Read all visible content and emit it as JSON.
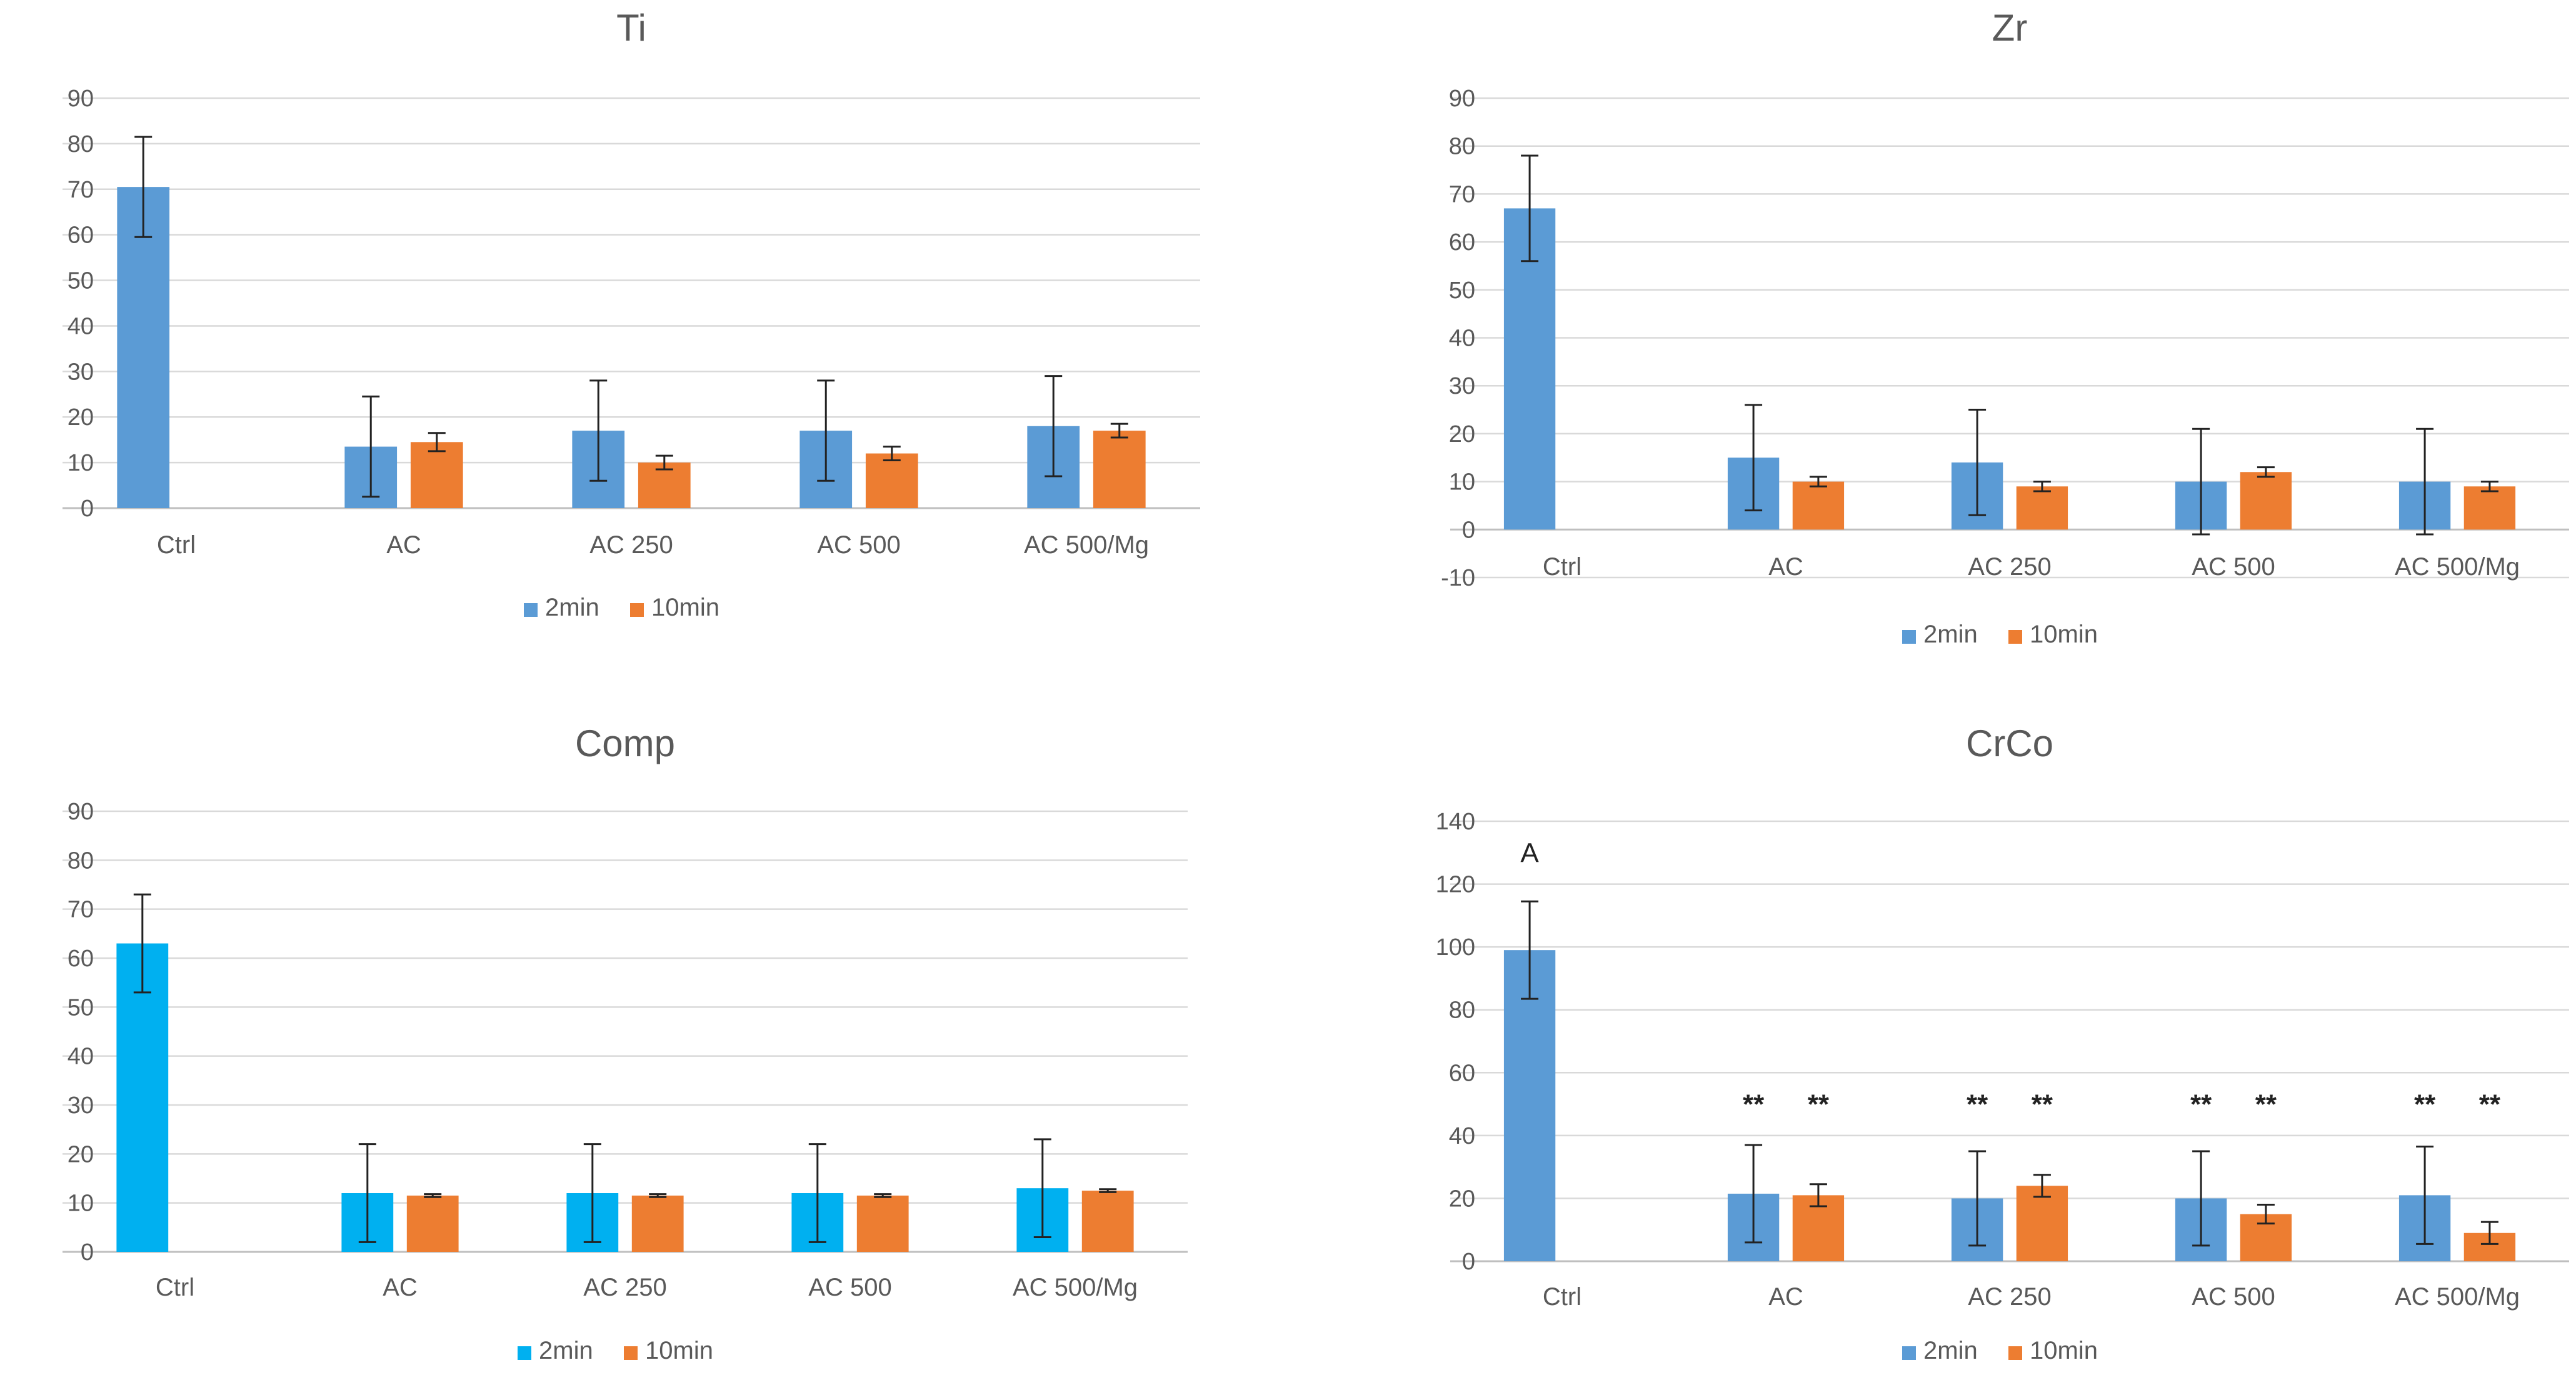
{
  "chart_data": [
    {
      "id": "ti",
      "type": "bar",
      "title": "Ti",
      "categories": [
        "Ctrl",
        "AC",
        "AC 250",
        "AC 500",
        "AC 500/Mg"
      ],
      "ylim": [
        0,
        90
      ],
      "ystep": 10,
      "series": [
        {
          "name": "2min",
          "color": "#5b9bd5",
          "values": [
            70.5,
            13.5,
            17,
            17,
            18
          ],
          "errors": [
            11,
            11,
            11,
            11,
            11
          ]
        },
        {
          "name": "10min",
          "color": "#ed7d31",
          "values": [
            null,
            14.5,
            10,
            12,
            17
          ],
          "errors": [
            null,
            2,
            1.5,
            1.5,
            1.5
          ]
        }
      ],
      "annotations": []
    },
    {
      "id": "zr",
      "type": "bar",
      "title": "Zr",
      "categories": [
        "Ctrl",
        "AC",
        "AC 250",
        "AC 500",
        "AC 500/Mg"
      ],
      "ylim": [
        -10,
        90
      ],
      "ystep": 10,
      "series": [
        {
          "name": "2min",
          "color": "#5b9bd5",
          "values": [
            67,
            15,
            14,
            10,
            10
          ],
          "errors": [
            11,
            11,
            11,
            11,
            11
          ]
        },
        {
          "name": "10min",
          "color": "#ed7d31",
          "values": [
            null,
            10,
            9,
            12,
            9
          ],
          "errors": [
            null,
            1,
            1,
            1,
            1
          ]
        }
      ],
      "annotations": []
    },
    {
      "id": "comp",
      "type": "bar",
      "title": "Comp",
      "categories": [
        "Ctrl",
        "AC",
        "AC 250",
        "AC 500",
        "AC 500/Mg"
      ],
      "ylim": [
        0,
        90
      ],
      "ystep": 10,
      "series": [
        {
          "name": "2min",
          "color": "#00b0f0",
          "values": [
            63,
            12,
            12,
            12,
            13
          ],
          "errors": [
            10,
            10,
            10,
            10,
            10
          ]
        },
        {
          "name": "10min",
          "color": "#ed7d31",
          "values": [
            null,
            11.5,
            11.5,
            11.5,
            12.5
          ],
          "errors": [
            null,
            0.3,
            0.3,
            0.3,
            0.3
          ]
        }
      ],
      "annotations": []
    },
    {
      "id": "crco",
      "type": "bar",
      "title": "CrCo",
      "categories": [
        "Ctrl",
        "AC",
        "AC 250",
        "AC 500",
        "AC 500/Mg"
      ],
      "ylim": [
        0,
        140
      ],
      "ystep": 20,
      "series": [
        {
          "name": "2min",
          "color": "#5b9bd5",
          "values": [
            99,
            21.5,
            20,
            20,
            21
          ],
          "errors": [
            15.5,
            15.5,
            15,
            15,
            15.5
          ]
        },
        {
          "name": "10min",
          "color": "#ed7d31",
          "values": [
            null,
            21,
            24,
            15,
            9
          ],
          "errors": [
            null,
            3.5,
            3.5,
            3,
            3.5
          ]
        }
      ],
      "annotations": [
        {
          "text": "A",
          "category": 0,
          "series": 0,
          "y": 130,
          "style": "A"
        },
        {
          "text": "**",
          "category": 1,
          "series": 0,
          "y": 50,
          "style": "star"
        },
        {
          "text": "**",
          "category": 1,
          "series": 1,
          "y": 50,
          "style": "star"
        },
        {
          "text": "**",
          "category": 2,
          "series": 0,
          "y": 50,
          "style": "star"
        },
        {
          "text": "**",
          "category": 2,
          "series": 1,
          "y": 50,
          "style": "star"
        },
        {
          "text": "**",
          "category": 3,
          "series": 0,
          "y": 50,
          "style": "star"
        },
        {
          "text": "**",
          "category": 3,
          "series": 1,
          "y": 50,
          "style": "star"
        },
        {
          "text": "**",
          "category": 4,
          "series": 0,
          "y": 50,
          "style": "star"
        },
        {
          "text": "**",
          "category": 4,
          "series": 1,
          "y": 50,
          "style": "star"
        }
      ]
    }
  ]
}
